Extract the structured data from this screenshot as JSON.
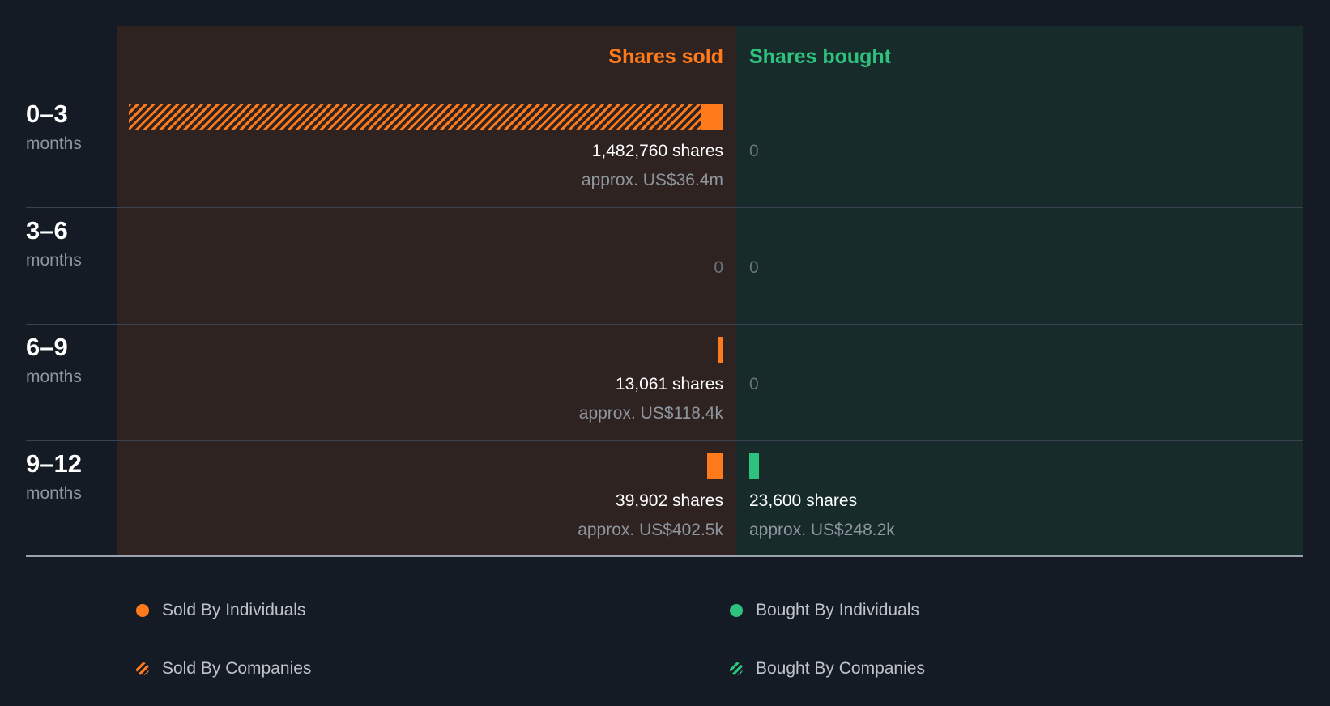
{
  "chart_data": {
    "type": "bar",
    "title": "",
    "headers": {
      "sold": "Shares sold",
      "bought": "Shares bought"
    },
    "colors": {
      "sold": "#ff7a1a",
      "bought": "#2ec27e"
    },
    "periods": [
      {
        "range": "0–3",
        "unit": "months",
        "sold": {
          "individuals_shares": 55000,
          "companies_shares": 1427760,
          "shares_label": "1,482,760 shares",
          "approx_label": "approx. US$36.4m"
        },
        "bought": {
          "individuals_shares": 0,
          "companies_shares": 0,
          "shares_label": "0",
          "approx_label": ""
        }
      },
      {
        "range": "3–6",
        "unit": "months",
        "sold": {
          "individuals_shares": 0,
          "companies_shares": 0,
          "shares_label": "0",
          "approx_label": ""
        },
        "bought": {
          "individuals_shares": 0,
          "companies_shares": 0,
          "shares_label": "0",
          "approx_label": ""
        }
      },
      {
        "range": "6–9",
        "unit": "months",
        "sold": {
          "individuals_shares": 13061,
          "companies_shares": 0,
          "shares_label": "13,061 shares",
          "approx_label": "approx. US$118.4k"
        },
        "bought": {
          "individuals_shares": 0,
          "companies_shares": 0,
          "shares_label": "0",
          "approx_label": ""
        }
      },
      {
        "range": "9–12",
        "unit": "months",
        "sold": {
          "individuals_shares": 39902,
          "companies_shares": 0,
          "shares_label": "39,902 shares",
          "approx_label": "approx. US$402.5k"
        },
        "bought": {
          "individuals_shares": 23600,
          "companies_shares": 0,
          "shares_label": "23,600 shares",
          "approx_label": "approx. US$248.2k"
        }
      }
    ],
    "max_shares": 1482760,
    "legend": [
      {
        "label": "Sold By Individuals",
        "color": "#ff7a1a",
        "style": "solid"
      },
      {
        "label": "Bought By Individuals",
        "color": "#2ec27e",
        "style": "solid"
      },
      {
        "label": "Sold By Companies",
        "color": "#ff7a1a",
        "style": "hatched"
      },
      {
        "label": "Bought By Companies",
        "color": "#2ec27e",
        "style": "hatched"
      }
    ]
  }
}
